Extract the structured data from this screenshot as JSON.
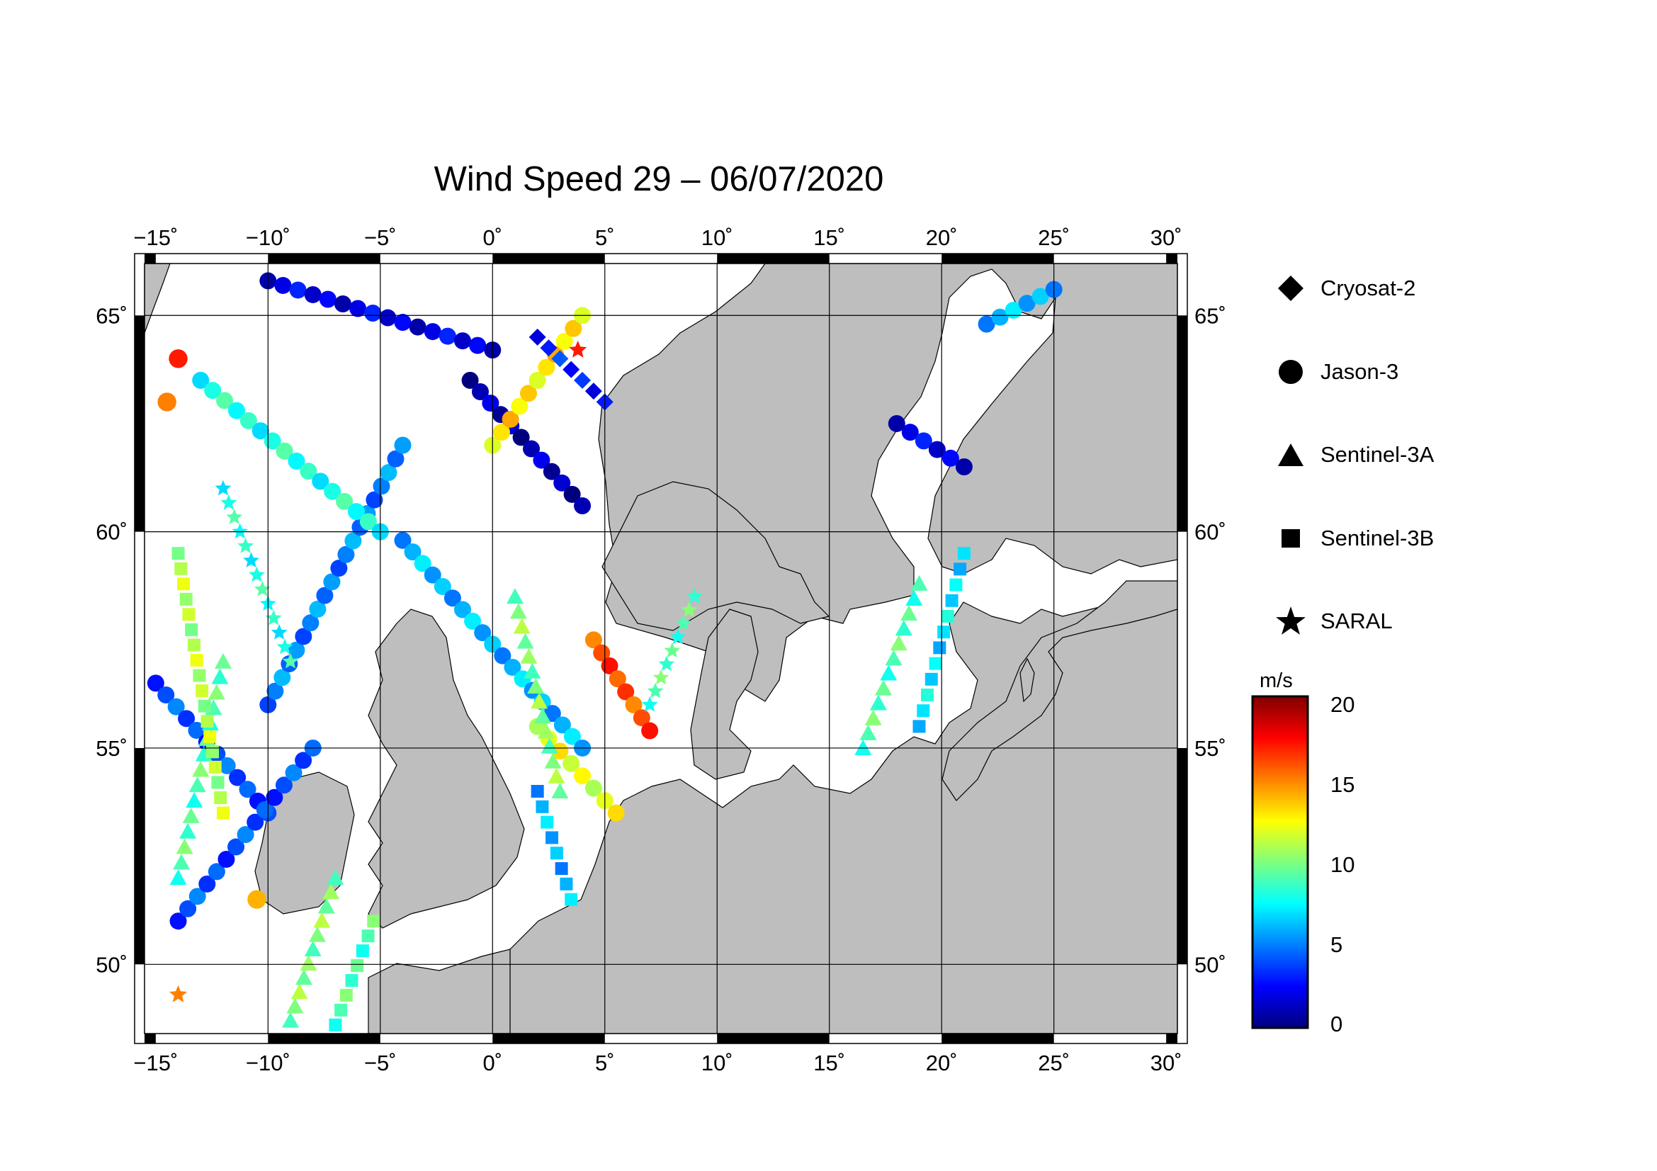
{
  "title": "Wind Speed 29 – 06/07/2020",
  "map": {
    "lon_range": [
      -15.5,
      30.5
    ],
    "lat_range": [
      48.4,
      66.2
    ],
    "lon_ticks": [
      "−15˚",
      "−10˚",
      "−5˚",
      "0˚",
      "5˚",
      "10˚",
      "15˚",
      "20˚",
      "25˚",
      "30˚"
    ],
    "lat_ticks": [
      "50˚",
      "55˚",
      "60˚",
      "65˚"
    ],
    "land_color": "#bebebe",
    "sea_color": "#ffffff"
  },
  "legend": {
    "items": [
      {
        "label": "Cryosat-2",
        "symbol": "diamond-icon"
      },
      {
        "label": "Jason-3",
        "symbol": "circle-icon"
      },
      {
        "label": "Sentinel-3A",
        "symbol": "triangle-icon"
      },
      {
        "label": "Sentinel-3B",
        "symbol": "square-icon"
      },
      {
        "label": "SARAL",
        "symbol": "star-icon"
      }
    ]
  },
  "colorbar": {
    "unit": "m/s",
    "range": [
      0,
      20
    ],
    "ticks": [
      "20",
      "15",
      "10",
      "5",
      "0"
    ],
    "colors": [
      "#00007f",
      "#0000ff",
      "#007fff",
      "#00ffff",
      "#7fff7f",
      "#ffff00",
      "#ff7f00",
      "#ff0000",
      "#7f0000"
    ]
  },
  "tracks": [
    {
      "sat": "Jason-3",
      "from": [
        -15,
        56.5
      ],
      "to": [
        -10,
        53.5
      ],
      "wind": 4
    },
    {
      "sat": "Jason-3",
      "from": [
        -14,
        51
      ],
      "to": [
        -8,
        55
      ],
      "wind": 4
    },
    {
      "sat": "Jason-3",
      "from": [
        -10,
        65.8
      ],
      "to": [
        0,
        64.2
      ],
      "wind": 2
    },
    {
      "sat": "Jason-3",
      "from": [
        -10,
        56
      ],
      "to": [
        -4,
        62
      ],
      "wind": 5
    },
    {
      "sat": "Jason-3",
      "from": [
        -4,
        59.8
      ],
      "to": [
        4,
        55
      ],
      "wind": 6
    },
    {
      "sat": "Jason-3",
      "from": [
        -1,
        63.5
      ],
      "to": [
        4,
        60.6
      ],
      "wind": 1
    },
    {
      "sat": "Jason-3",
      "from": [
        0,
        62
      ],
      "to": [
        4,
        65
      ],
      "wind": 13
    },
    {
      "sat": "Jason-3",
      "from": [
        4.5,
        57.5
      ],
      "to": [
        7,
        55.4
      ],
      "wind": 16
    },
    {
      "sat": "Jason-3",
      "from": [
        2,
        55.5
      ],
      "to": [
        5.5,
        53.5
      ],
      "wind": 12
    },
    {
      "sat": "Jason-3",
      "from": [
        -13,
        63.5
      ],
      "to": [
        -5,
        60
      ],
      "wind": 8
    },
    {
      "sat": "Jason-3",
      "from": [
        18,
        62.5
      ],
      "to": [
        21,
        61.5
      ],
      "wind": 2
    },
    {
      "sat": "Jason-3",
      "from": [
        22,
        64.8
      ],
      "to": [
        25,
        65.6
      ],
      "wind": 6
    },
    {
      "sat": "Sentinel-3A",
      "from": [
        -14,
        52
      ],
      "to": [
        -12,
        57
      ],
      "wind": 9
    },
    {
      "sat": "Sentinel-3A",
      "from": [
        -9,
        48.7
      ],
      "to": [
        -7,
        52
      ],
      "wind": 10
    },
    {
      "sat": "Sentinel-3A",
      "from": [
        1,
        58.5
      ],
      "to": [
        3,
        54
      ],
      "wind": 10
    },
    {
      "sat": "Sentinel-3A",
      "from": [
        16.5,
        55
      ],
      "to": [
        19,
        58.8
      ],
      "wind": 9
    },
    {
      "sat": "Sentinel-3B",
      "from": [
        -14,
        59.5
      ],
      "to": [
        -12,
        53.5
      ],
      "wind": 11
    },
    {
      "sat": "Sentinel-3B",
      "from": [
        -7,
        48.6
      ],
      "to": [
        -5.3,
        51
      ],
      "wind": 9
    },
    {
      "sat": "Sentinel-3B",
      "from": [
        2,
        54
      ],
      "to": [
        3.5,
        51.5
      ],
      "wind": 6
    },
    {
      "sat": "Sentinel-3B",
      "from": [
        19,
        55.5
      ],
      "to": [
        21,
        59.5
      ],
      "wind": 7
    },
    {
      "sat": "SARAL",
      "from": [
        -12,
        61
      ],
      "to": [
        -9,
        57
      ],
      "wind": 8
    },
    {
      "sat": "SARAL",
      "from": [
        7,
        56
      ],
      "to": [
        9,
        58.5
      ],
      "wind": 9
    },
    {
      "sat": "Cryosat-2",
      "from": [
        2,
        64.5
      ],
      "to": [
        5,
        63
      ],
      "wind": 3
    }
  ],
  "highlights": [
    {
      "sat": "Jason-3",
      "at": [
        -14,
        64
      ],
      "wind": 17
    },
    {
      "sat": "Jason-3",
      "at": [
        -10.5,
        51.5
      ],
      "wind": 14
    },
    {
      "sat": "SARAL",
      "at": [
        -14,
        49.3
      ],
      "wind": 15
    },
    {
      "sat": "SARAL",
      "at": [
        3.8,
        64.2
      ],
      "wind": 17
    },
    {
      "sat": "Jason-3",
      "at": [
        -14.5,
        63
      ],
      "wind": 15
    }
  ]
}
